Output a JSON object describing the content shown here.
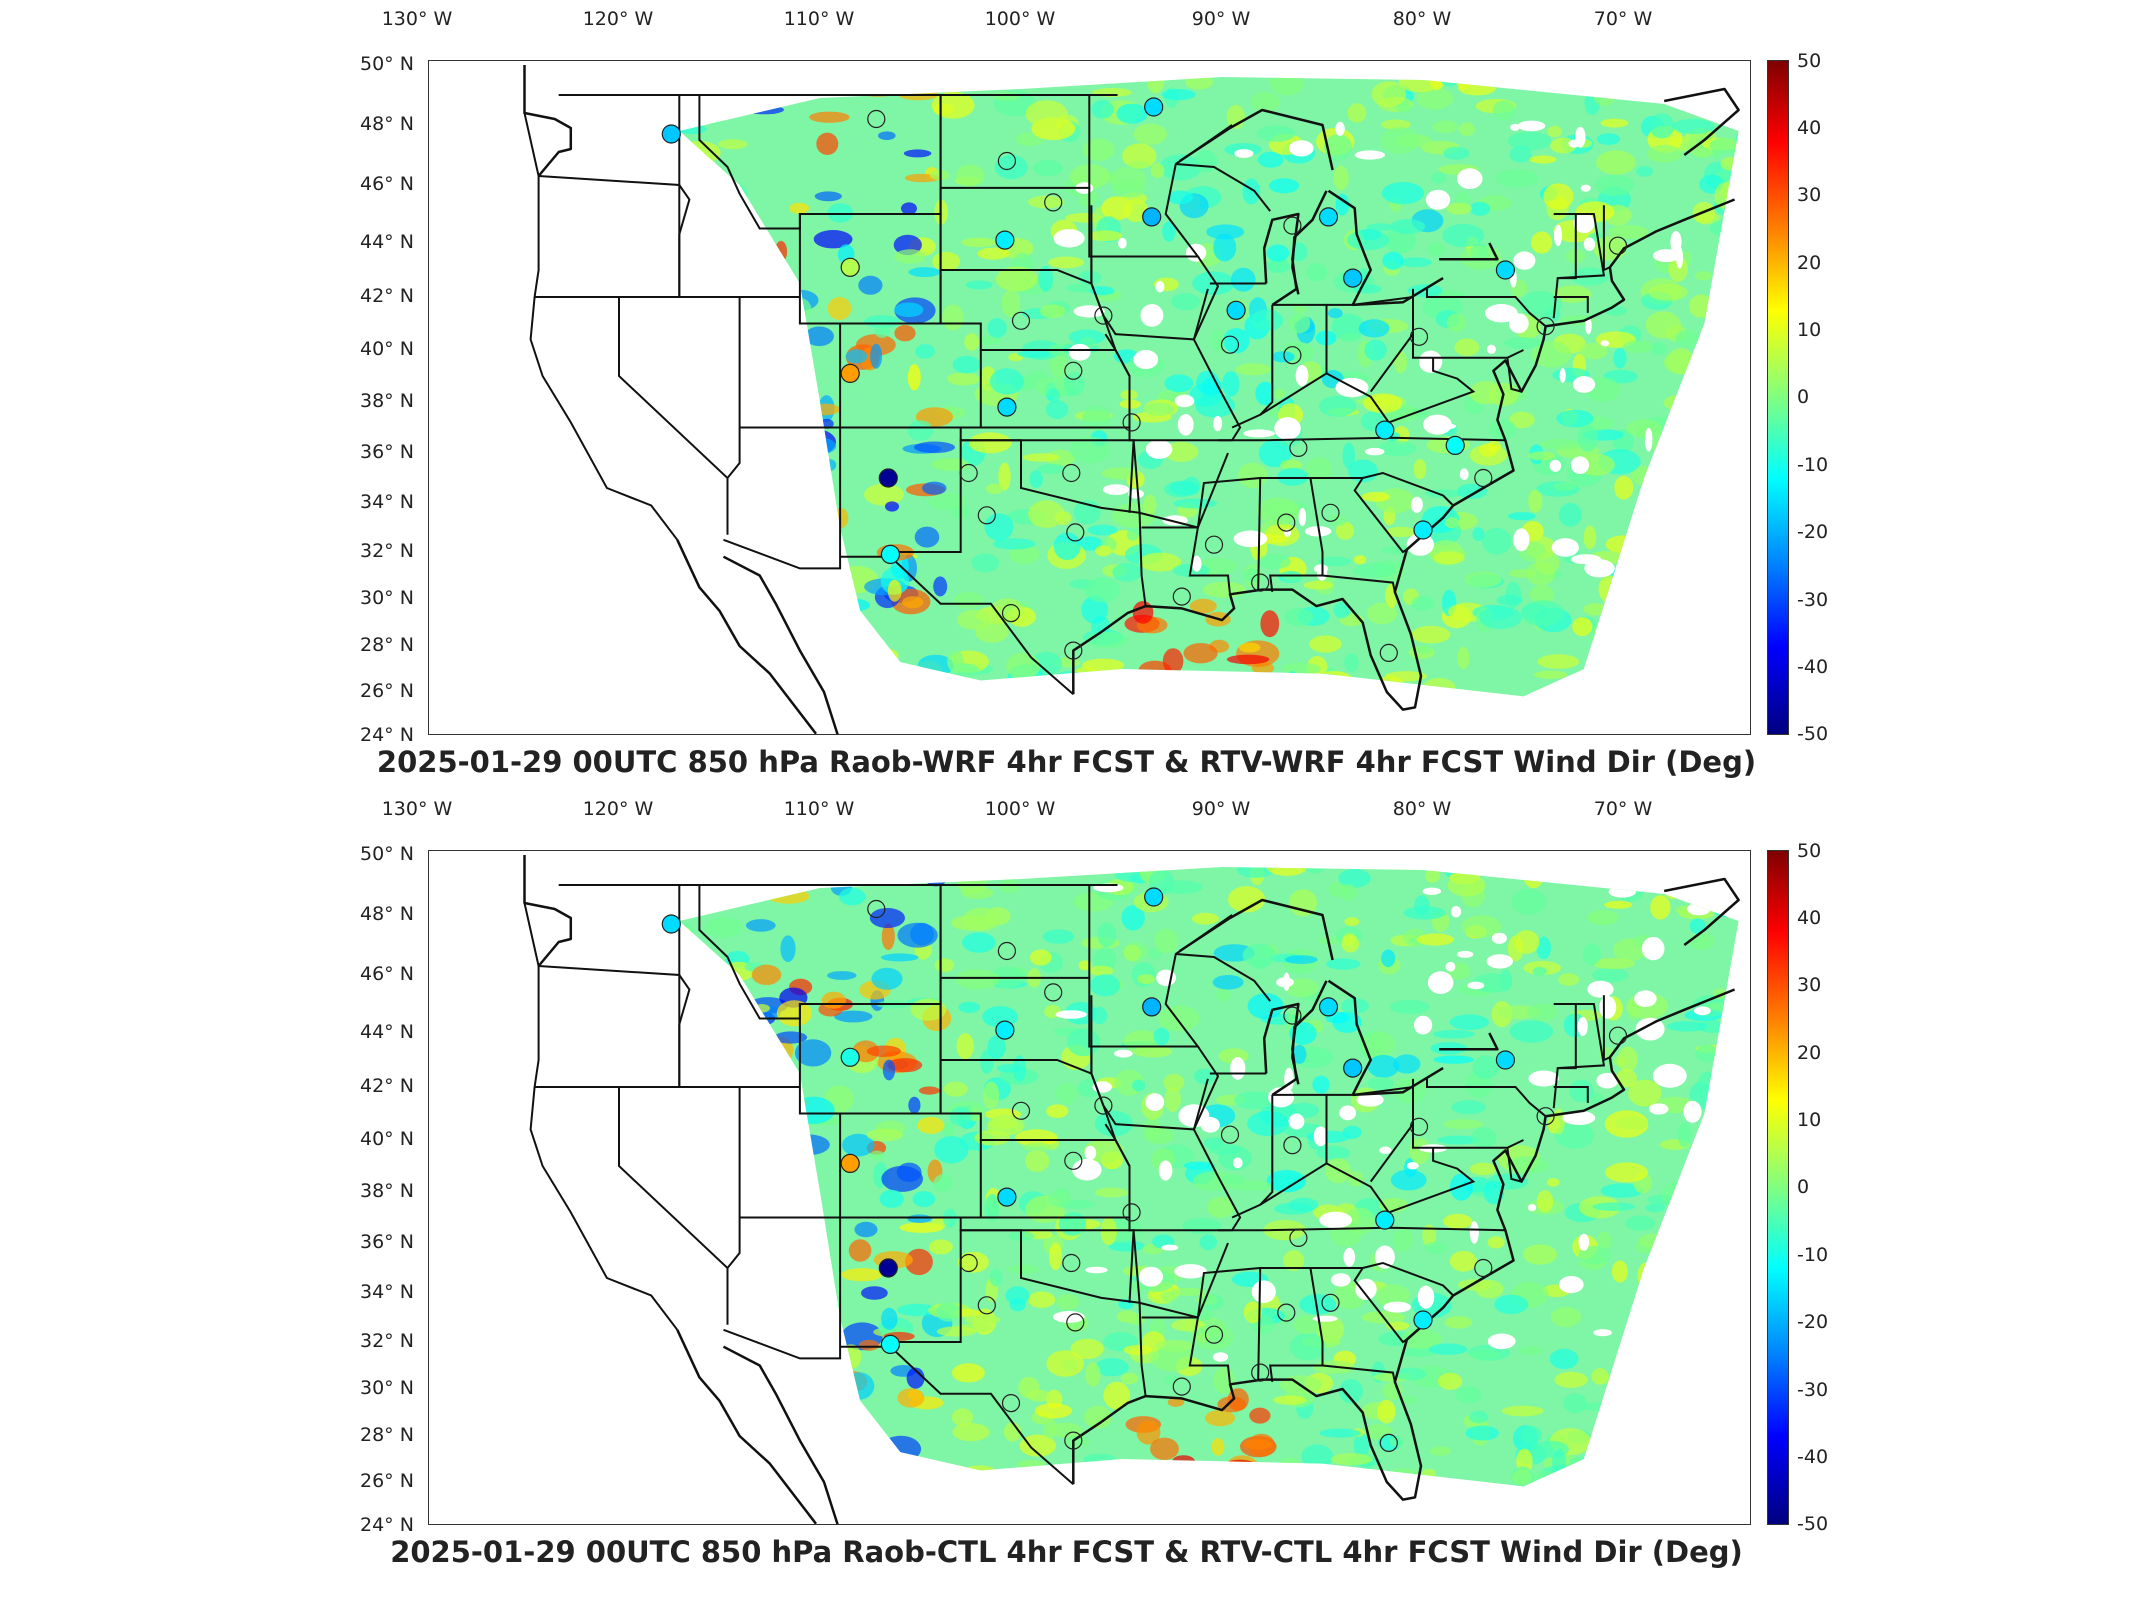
{
  "panels": [
    {
      "id": "top",
      "title": "2025-01-29 00UTC 850 hPa Raob-WRF 4hr FCST & RTV-WRF 4hr FCST Wind Dir (Deg)"
    },
    {
      "id": "bottom",
      "title": "2025-01-29 00UTC 850 hPa Raob-CTL 4hr FCST & RTV-CTL 4hr FCST Wind Dir (Deg)"
    }
  ],
  "axes": {
    "lon_labels": [
      "130° W",
      "120° W",
      "110° W",
      "100° W",
      "90° W",
      "80° W",
      "70° W"
    ],
    "lon_values": [
      -130,
      -120,
      -110,
      -100,
      -90,
      -80,
      -70
    ],
    "lat_labels": [
      "50° N",
      "48° N",
      "46° N",
      "44° N",
      "42° N",
      "40° N",
      "38° N",
      "36° N",
      "34° N",
      "32° N",
      "30° N",
      "28° N",
      "26° N",
      "24° N"
    ],
    "lat_values": [
      50,
      48,
      46,
      44,
      42,
      40,
      38,
      36,
      34,
      32,
      30,
      28,
      26,
      24
    ]
  },
  "colorbar": {
    "labels": [
      "50",
      "40",
      "30",
      "20",
      "10",
      "0",
      "-10",
      "-20",
      "-30",
      "-40",
      "-50"
    ],
    "range": [
      -50,
      50
    ],
    "colormap": "jet",
    "colors": [
      "#7f0000",
      "#ff0000",
      "#ff8000",
      "#ffff00",
      "#80ff80",
      "#00ffff",
      "#0080ff",
      "#0000ff",
      "#00007f"
    ]
  },
  "raob_stations": {
    "top": [
      {
        "lon": -117.4,
        "lat": 47.7,
        "value": -18
      },
      {
        "lon": -108.5,
        "lat": 43.1,
        "value": 5
      },
      {
        "lon": -108.5,
        "lat": 39.1,
        "value": 22
      },
      {
        "lon": -106.6,
        "lat": 35.0,
        "value": -48
      },
      {
        "lon": -106.5,
        "lat": 31.9,
        "value": -12
      },
      {
        "lon": -100.8,
        "lat": 44.1,
        "value": -14
      },
      {
        "lon": -93.4,
        "lat": 48.6,
        "value": -16
      },
      {
        "lon": -93.5,
        "lat": 44.9,
        "value": -20
      },
      {
        "lon": -84.7,
        "lat": 44.9,
        "value": -16
      },
      {
        "lon": -83.5,
        "lat": 42.7,
        "value": -18
      },
      {
        "lon": -89.3,
        "lat": 41.5,
        "value": -16
      },
      {
        "lon": -100.7,
        "lat": 37.8,
        "value": -16
      },
      {
        "lon": -75.9,
        "lat": 43.0,
        "value": -16
      },
      {
        "lon": -81.9,
        "lat": 36.9,
        "value": -14
      },
      {
        "lon": -78.4,
        "lat": 36.3,
        "value": -12
      },
      {
        "lon": -80.0,
        "lat": 32.9,
        "value": -14
      }
    ],
    "bottom": [
      {
        "lon": -117.4,
        "lat": 47.7,
        "value": -16
      },
      {
        "lon": -108.5,
        "lat": 43.1,
        "value": -10
      },
      {
        "lon": -108.5,
        "lat": 39.1,
        "value": 22
      },
      {
        "lon": -106.6,
        "lat": 35.0,
        "value": -48
      },
      {
        "lon": -106.5,
        "lat": 31.9,
        "value": -12
      },
      {
        "lon": -100.8,
        "lat": 44.1,
        "value": -14
      },
      {
        "lon": -93.4,
        "lat": 48.6,
        "value": -16
      },
      {
        "lon": -93.5,
        "lat": 44.9,
        "value": -20
      },
      {
        "lon": -84.7,
        "lat": 44.9,
        "value": -16
      },
      {
        "lon": -83.5,
        "lat": 42.7,
        "value": -18
      },
      {
        "lon": -100.7,
        "lat": 37.8,
        "value": -16
      },
      {
        "lon": -75.9,
        "lat": 43.0,
        "value": -16
      },
      {
        "lon": -81.9,
        "lat": 36.9,
        "value": -14
      },
      {
        "lon": -80.0,
        "lat": 32.9,
        "value": -14
      }
    ],
    "neutral_top": [
      {
        "lon": -107.2,
        "lat": 48.2
      },
      {
        "lon": -98.4,
        "lat": 45.4
      },
      {
        "lon": -100.7,
        "lat": 46.8
      },
      {
        "lon": -97.4,
        "lat": 39.2
      },
      {
        "lon": -94.5,
        "lat": 37.2
      },
      {
        "lon": -90.4,
        "lat": 32.3
      },
      {
        "lon": -86.8,
        "lat": 33.2
      },
      {
        "lon": -84.6,
        "lat": 33.6
      },
      {
        "lon": -97.5,
        "lat": 35.2
      },
      {
        "lon": -97.3,
        "lat": 32.8
      },
      {
        "lon": -101.7,
        "lat": 33.5
      },
      {
        "lon": -100.5,
        "lat": 29.4
      },
      {
        "lon": -97.4,
        "lat": 27.8
      },
      {
        "lon": -92.0,
        "lat": 30.1
      },
      {
        "lon": -88.1,
        "lat": 30.7
      },
      {
        "lon": -81.7,
        "lat": 27.7
      },
      {
        "lon": -77.0,
        "lat": 35.0
      },
      {
        "lon": -86.2,
        "lat": 36.2
      },
      {
        "lon": -86.5,
        "lat": 39.8
      },
      {
        "lon": -89.6,
        "lat": 40.2
      },
      {
        "lon": -80.2,
        "lat": 40.5
      },
      {
        "lon": -73.9,
        "lat": 40.9
      },
      {
        "lon": -70.3,
        "lat": 43.9
      },
      {
        "lon": -95.9,
        "lat": 41.3
      },
      {
        "lon": -102.6,
        "lat": 35.2
      },
      {
        "lon": -100.0,
        "lat": 41.1
      },
      {
        "lon": -86.5,
        "lat": 44.6
      }
    ]
  }
}
